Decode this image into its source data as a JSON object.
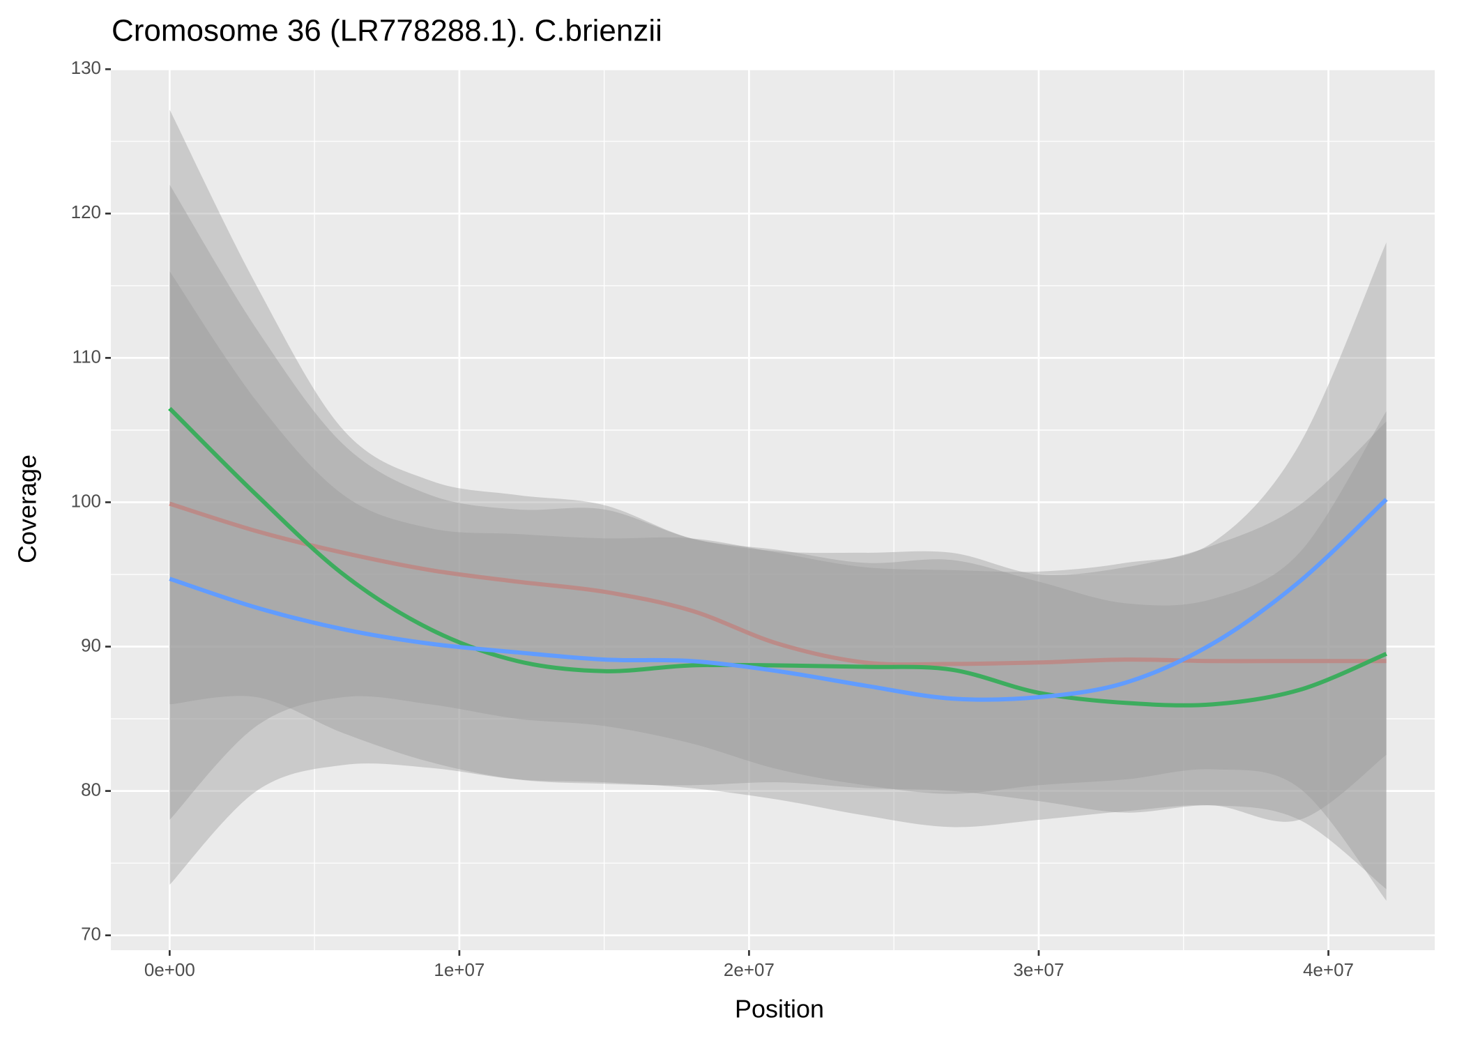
{
  "chart_data": {
    "type": "line",
    "title": "Cromosome 36 (LR778288.1). C.brienzii",
    "x_label": "Position",
    "y_label": "Coverage",
    "x": [
      0,
      3000000,
      6000000,
      9000000,
      12000000,
      15000000,
      18000000,
      21000000,
      24000000,
      27000000,
      30000000,
      33000000,
      36000000,
      39000000,
      42000000
    ],
    "series": [
      {
        "color": "#F8766D",
        "values": [
          99.9,
          98.0,
          96.5,
          95.3,
          94.5,
          93.8,
          92.5,
          90.2,
          88.9,
          88.8,
          88.9,
          89.1,
          89.0,
          89.0,
          89.0
        ],
        "upper": [
          122,
          112,
          104,
          100.5,
          99.5,
          99.5,
          97.5,
          96.6,
          96.5,
          96.5,
          95.0,
          95.5,
          97.0,
          99.8,
          105.6
        ],
        "lower": [
          78,
          84.5,
          86.5,
          86.0,
          85.0,
          84.5,
          83.3,
          81.5,
          80.4,
          79.8,
          80.4,
          80.8,
          81.5,
          80.2,
          72.4
        ]
      },
      {
        "color": "#00BA38",
        "values": [
          106.5,
          100.5,
          95.0,
          91.2,
          89.0,
          88.3,
          88.7,
          88.7,
          88.6,
          88.4,
          86.8,
          86.1,
          86.0,
          87.0,
          89.5
        ],
        "upper": [
          127.2,
          115,
          105,
          101.5,
          100.5,
          99.8,
          97.5,
          96.7,
          95.8,
          96.0,
          94.5,
          93.0,
          93.3,
          96.5,
          106.3
        ],
        "lower": [
          86,
          86.5,
          84.0,
          82.0,
          80.8,
          80.5,
          80.4,
          80.6,
          80.2,
          80.0,
          79.3,
          78.5,
          79.0,
          78.0,
          73.2
        ]
      },
      {
        "color": "#619CFF",
        "values": [
          94.7,
          92.7,
          91.2,
          90.2,
          89.6,
          89.1,
          89.0,
          88.3,
          87.3,
          86.4,
          86.5,
          87.5,
          90.2,
          94.5,
          100.2
        ],
        "upper": [
          116,
          107,
          100.5,
          98.2,
          97.8,
          97.5,
          97.5,
          96.5,
          95.5,
          95.3,
          95.2,
          95.8,
          97.2,
          104,
          118
        ],
        "lower": [
          73.5,
          80.0,
          81.8,
          81.6,
          80.8,
          80.6,
          80.2,
          79.4,
          78.3,
          77.5,
          78,
          78.6,
          79,
          78,
          82.5
        ]
      }
    ],
    "ribbon_color": "#999999",
    "xlim": [
      -2030000,
      43670000
    ],
    "xticks": [
      {
        "value": 0,
        "label": "0e+00"
      },
      {
        "value": 10000000,
        "label": "1e+07"
      },
      {
        "value": 20000000,
        "label": "2e+07"
      },
      {
        "value": 30000000,
        "label": "3e+07"
      },
      {
        "value": 40000000,
        "label": "4e+07"
      }
    ],
    "ylim": [
      68.97,
      130.06
    ],
    "yticks": [
      70,
      80,
      90,
      100,
      110,
      120,
      130
    ],
    "grid": true,
    "minor_grid": true
  }
}
